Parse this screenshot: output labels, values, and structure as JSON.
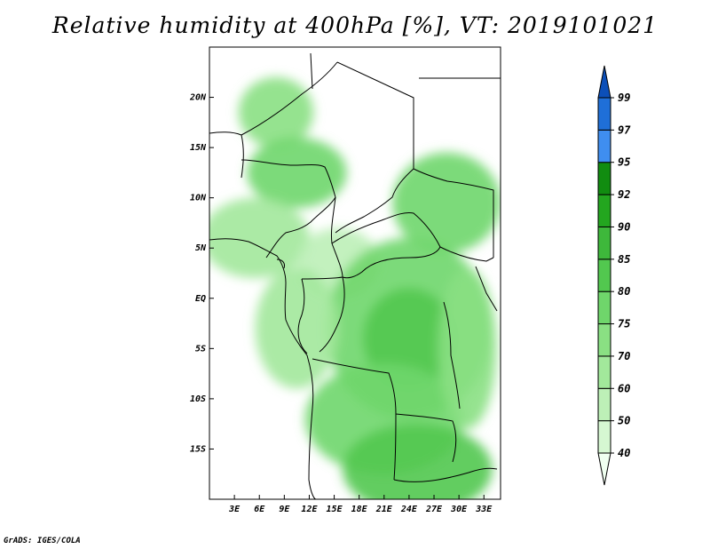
{
  "title": "Relative humidity at 400hPa [%], VT: 2019101021",
  "credit": "GrADS: IGES/COLA",
  "map": {
    "field": "relative humidity",
    "level_hPa": 400,
    "valid_time": "2019101021",
    "lon_range": [
      0,
      35
    ],
    "lat_range": [
      -20,
      25
    ],
    "lat_ticks": [
      {
        "value": 20,
        "label": "20N"
      },
      {
        "value": 15,
        "label": "15N"
      },
      {
        "value": 10,
        "label": "10N"
      },
      {
        "value": 5,
        "label": "5N"
      },
      {
        "value": 0,
        "label": "EQ"
      },
      {
        "value": -5,
        "label": "5S"
      },
      {
        "value": -10,
        "label": "10S"
      },
      {
        "value": -15,
        "label": "15S"
      }
    ],
    "lon_ticks": [
      {
        "value": 3,
        "label": "3E"
      },
      {
        "value": 6,
        "label": "6E"
      },
      {
        "value": 9,
        "label": "9E"
      },
      {
        "value": 12,
        "label": "12E"
      },
      {
        "value": 15,
        "label": "15E"
      },
      {
        "value": 18,
        "label": "18E"
      },
      {
        "value": 21,
        "label": "21E"
      },
      {
        "value": 24,
        "label": "24E"
      },
      {
        "value": 27,
        "label": "27E"
      },
      {
        "value": 30,
        "label": "30E"
      },
      {
        "value": 33,
        "label": "33E"
      }
    ]
  },
  "colorbar": {
    "levels": [
      "40",
      "50",
      "60",
      "70",
      "75",
      "80",
      "85",
      "90",
      "92",
      "95",
      "97",
      "99"
    ],
    "colors": [
      "#f0fff0",
      "#d6f7d2",
      "#bdf0b7",
      "#a2e89b",
      "#8ae083",
      "#6fd66b",
      "#52c84f",
      "#3eb83b",
      "#23a61f",
      "#118c10",
      "#3f8ef0",
      "#1f6fd8",
      "#0c4fb8"
    ]
  },
  "chart_data": {
    "type": "heatmap",
    "title": "Relative humidity at 400hPa [%], VT: 2019101021",
    "x_ticks": [
      "3E",
      "6E",
      "9E",
      "12E",
      "15E",
      "18E",
      "21E",
      "24E",
      "27E",
      "30E",
      "33E"
    ],
    "y_ticks": [
      "20N",
      "15N",
      "10N",
      "5N",
      "EQ",
      "5S",
      "10S",
      "15S"
    ],
    "xlim": [
      0,
      35
    ],
    "ylim": [
      -20,
      25
    ],
    "contour_levels": [
      40,
      50,
      60,
      70,
      75,
      80,
      85,
      90,
      92,
      95,
      97,
      99
    ],
    "regions": [
      {
        "lon": 8.0,
        "lat": 18.5,
        "rx": 4.5,
        "ry": 3.5,
        "value": 70
      },
      {
        "lon": 10.5,
        "lat": 12.5,
        "rx": 6.0,
        "ry": 3.5,
        "value": 75
      },
      {
        "lon": 5.5,
        "lat": 6.0,
        "rx": 6.5,
        "ry": 4.0,
        "value": 60
      },
      {
        "lon": 15.5,
        "lat": 3.5,
        "rx": 5.0,
        "ry": 3.5,
        "value": 55
      },
      {
        "lon": 28.5,
        "lat": 9.5,
        "rx": 6.5,
        "ry": 5.0,
        "value": 75
      },
      {
        "lon": 24.0,
        "lat": -3.0,
        "rx": 10.0,
        "ry": 9.0,
        "value": 75
      },
      {
        "lon": 24.0,
        "lat": -4.0,
        "rx": 5.5,
        "ry": 5.0,
        "value": 80
      },
      {
        "lon": 21.0,
        "lat": -12.0,
        "rx": 9.5,
        "ry": 5.5,
        "value": 75
      },
      {
        "lon": 25.0,
        "lat": -17.0,
        "rx": 9.0,
        "ry": 4.5,
        "value": 80
      },
      {
        "lon": 31.0,
        "lat": -5.0,
        "rx": 3.5,
        "ry": 8.0,
        "value": 70
      },
      {
        "lon": 10.5,
        "lat": -3.0,
        "rx": 5.0,
        "ry": 6.0,
        "value": 65
      }
    ]
  }
}
